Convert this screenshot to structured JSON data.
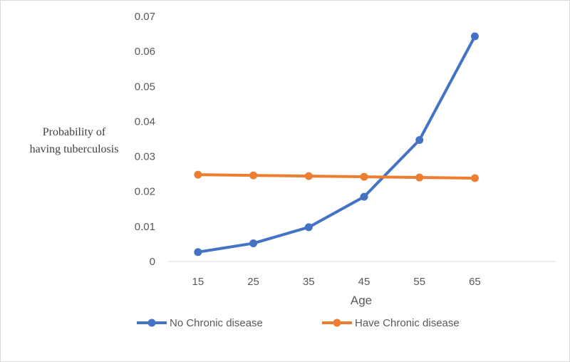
{
  "chart_data": {
    "type": "line",
    "title": "",
    "xlabel": "Age",
    "ylabel_lines": [
      "Probability of",
      "having tuberculosis"
    ],
    "categories": [
      "15",
      "25",
      "35",
      "45",
      "55",
      "65"
    ],
    "ylim": [
      0,
      0.07
    ],
    "yticks": [
      "0",
      "0.01",
      "0.02",
      "0.03",
      "0.04",
      "0.05",
      "0.06",
      "0.07"
    ],
    "ytick_values": [
      0,
      0.01,
      0.02,
      0.03,
      0.04,
      0.05,
      0.06,
      0.07
    ],
    "grid": false,
    "legend_position": "bottom",
    "series": [
      {
        "name": "No Chronic disease",
        "color": "#4472c4",
        "values": [
          0.0027,
          0.0052,
          0.0098,
          0.0185,
          0.0347,
          0.0643
        ]
      },
      {
        "name": "Have Chronic disease",
        "color": "#ed7d31",
        "values": [
          0.0248,
          0.0246,
          0.0244,
          0.0242,
          0.024,
          0.0238
        ]
      }
    ]
  }
}
